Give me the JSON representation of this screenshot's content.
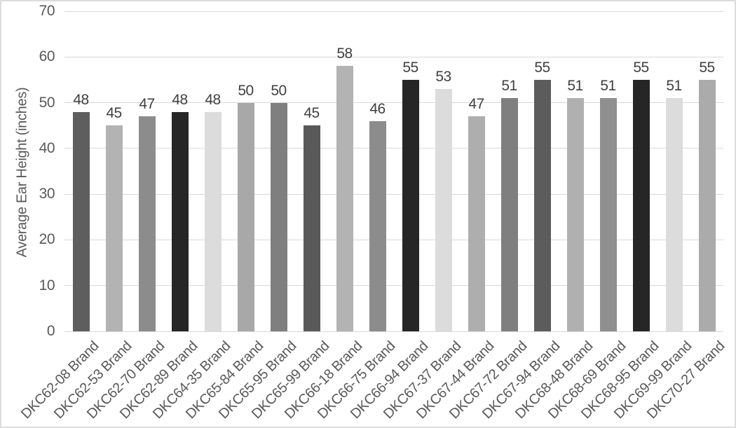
{
  "chart_data": {
    "type": "bar",
    "title": "",
    "xlabel": "",
    "ylabel": "Average Ear Height (inches)",
    "ylim": [
      0,
      70
    ],
    "yticks": [
      0,
      10,
      20,
      30,
      40,
      50,
      60,
      70
    ],
    "grid": true,
    "legend": false,
    "data_labels_shown": true,
    "categories": [
      "DKC62-08 Brand",
      "DKC62-53 Brand",
      "DKC62-70 Brand",
      "DKC62-89 Brand",
      "DKC64-35 Brand",
      "DKC65-84 Brand",
      "DKC65-95 Brand",
      "DKC65-99 Brand",
      "DKC66-18 Brand",
      "DKC66-75 Brand",
      "DKC66-94 Brand",
      "DKC67-37 Brand",
      "DKC67-44 Brand",
      "DKC67-72 Brand",
      "DKC67-94 Brand",
      "DKC68-48 Brand",
      "DKC68-69 Brand",
      "DKC68-95 Brand",
      "DKC69-99 Brand",
      "DKC70-27 Brand"
    ],
    "values": [
      48,
      45,
      47,
      48,
      48,
      50,
      50,
      45,
      58,
      46,
      55,
      53,
      47,
      51,
      55,
      51,
      51,
      55,
      51,
      55
    ],
    "bar_colors": [
      "#5e5e5e",
      "#b3b3b3",
      "#8c8c8c",
      "#262626",
      "#dcdcdc",
      "#a8a8a8",
      "#7f7f7f",
      "#595959",
      "#b3b3b3",
      "#8c8c8c",
      "#262626",
      "#dcdcdc",
      "#aeaeae",
      "#7f7f7f",
      "#5c5c5c",
      "#b0b0b0",
      "#8f8f8f",
      "#262626",
      "#dcdcdc",
      "#ababab"
    ]
  },
  "theme": {
    "background_color": "#ffffff",
    "frame_border_color": "#dcdcdc",
    "gridline_color": "#d9d9d9",
    "tick_label_color": "#595959",
    "axis_title_color": "#595959",
    "data_label_color": "#404040"
  }
}
